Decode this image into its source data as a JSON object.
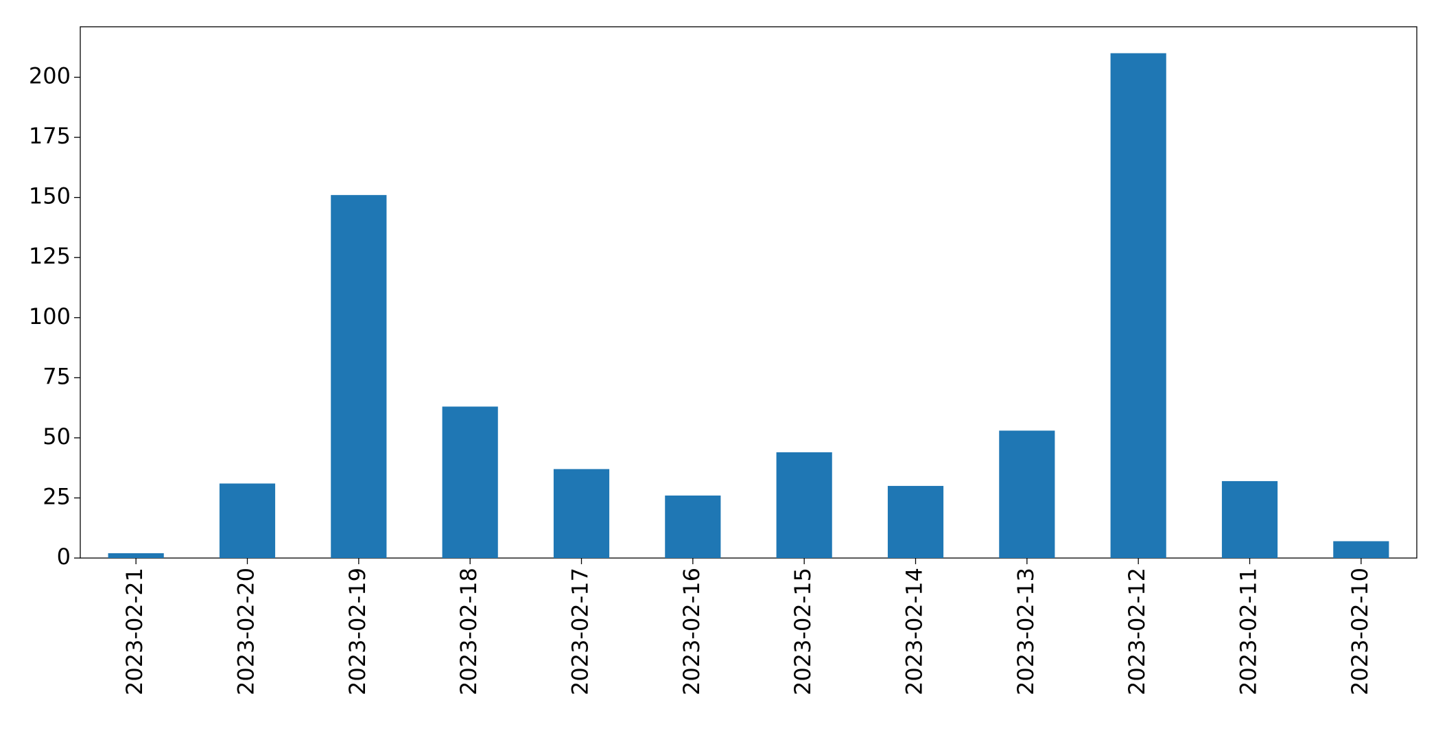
{
  "chart_data": {
    "type": "bar",
    "categories": [
      "2023-02-21",
      "2023-02-20",
      "2023-02-19",
      "2023-02-18",
      "2023-02-17",
      "2023-02-16",
      "2023-02-15",
      "2023-02-14",
      "2023-02-13",
      "2023-02-12",
      "2023-02-11",
      "2023-02-10"
    ],
    "values": [
      2,
      31,
      151,
      63,
      37,
      26,
      44,
      30,
      53,
      210,
      32,
      7
    ],
    "color": "#1f77b4",
    "ylim": [
      0,
      221
    ],
    "yticks": [
      0,
      25,
      50,
      75,
      100,
      125,
      150,
      175,
      200
    ],
    "grid": false
  }
}
